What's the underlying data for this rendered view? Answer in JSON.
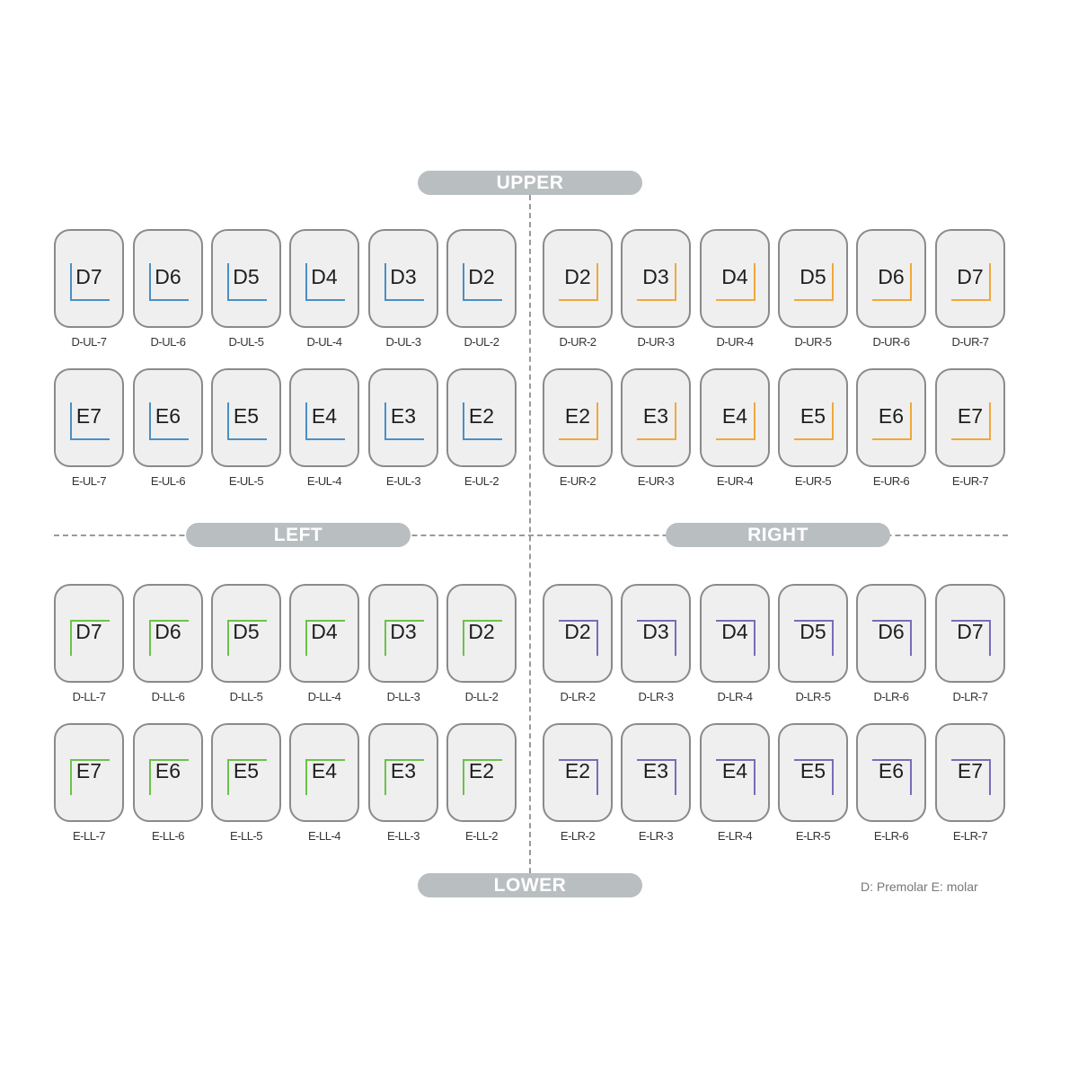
{
  "labels": {
    "upper": "UPPER",
    "lower": "LOWER",
    "left": "LEFT",
    "right": "RIGHT"
  },
  "legend": "D: Premolar E: molar",
  "colors": {
    "upper_left": "#4a8fc4",
    "upper_right": "#f0a83a",
    "lower_left": "#6cc24a",
    "lower_right": "#7b6bb8"
  },
  "quadrants": [
    {
      "id": "upper_left",
      "rows": [
        [
          {
            "code": "D7",
            "caption": "D-UL-7"
          },
          {
            "code": "D6",
            "caption": "D-UL-6"
          },
          {
            "code": "D5",
            "caption": "D-UL-5"
          },
          {
            "code": "D4",
            "caption": "D-UL-4"
          },
          {
            "code": "D3",
            "caption": "D-UL-3"
          },
          {
            "code": "D2",
            "caption": "D-UL-2"
          }
        ],
        [
          {
            "code": "E7",
            "caption": "E-UL-7"
          },
          {
            "code": "E6",
            "caption": "E-UL-6"
          },
          {
            "code": "E5",
            "caption": "E-UL-5"
          },
          {
            "code": "E4",
            "caption": "E-UL-4"
          },
          {
            "code": "E3",
            "caption": "E-UL-3"
          },
          {
            "code": "E2",
            "caption": "E-UL-2"
          }
        ]
      ]
    },
    {
      "id": "upper_right",
      "rows": [
        [
          {
            "code": "D2",
            "caption": "D-UR-2"
          },
          {
            "code": "D3",
            "caption": "D-UR-3"
          },
          {
            "code": "D4",
            "caption": "D-UR-4"
          },
          {
            "code": "D5",
            "caption": "D-UR-5"
          },
          {
            "code": "D6",
            "caption": "D-UR-6"
          },
          {
            "code": "D7",
            "caption": "D-UR-7"
          }
        ],
        [
          {
            "code": "E2",
            "caption": "E-UR-2"
          },
          {
            "code": "E3",
            "caption": "E-UR-3"
          },
          {
            "code": "E4",
            "caption": "E-UR-4"
          },
          {
            "code": "E5",
            "caption": "E-UR-5"
          },
          {
            "code": "E6",
            "caption": "E-UR-6"
          },
          {
            "code": "E7",
            "caption": "E-UR-7"
          }
        ]
      ]
    },
    {
      "id": "lower_left",
      "rows": [
        [
          {
            "code": "D7",
            "caption": "D-LL-7"
          },
          {
            "code": "D6",
            "caption": "D-LL-6"
          },
          {
            "code": "D5",
            "caption": "D-LL-5"
          },
          {
            "code": "D4",
            "caption": "D-LL-4"
          },
          {
            "code": "D3",
            "caption": "D-LL-3"
          },
          {
            "code": "D2",
            "caption": "D-LL-2"
          }
        ],
        [
          {
            "code": "E7",
            "caption": "E-LL-7"
          },
          {
            "code": "E6",
            "caption": "E-LL-6"
          },
          {
            "code": "E5",
            "caption": "E-LL-5"
          },
          {
            "code": "E4",
            "caption": "E-LL-4"
          },
          {
            "code": "E3",
            "caption": "E-LL-3"
          },
          {
            "code": "E2",
            "caption": "E-LL-2"
          }
        ]
      ]
    },
    {
      "id": "lower_right",
      "rows": [
        [
          {
            "code": "D2",
            "caption": "D-LR-2"
          },
          {
            "code": "D3",
            "caption": "D-LR-3"
          },
          {
            "code": "D4",
            "caption": "D-LR-4"
          },
          {
            "code": "D5",
            "caption": "D-LR-5"
          },
          {
            "code": "D6",
            "caption": "D-LR-6"
          },
          {
            "code": "D7",
            "caption": "D-LR-7"
          }
        ],
        [
          {
            "code": "E2",
            "caption": "E-LR-2"
          },
          {
            "code": "E3",
            "caption": "E-LR-3"
          },
          {
            "code": "E4",
            "caption": "E-LR-4"
          },
          {
            "code": "E5",
            "caption": "E-LR-5"
          },
          {
            "code": "E6",
            "caption": "E-LR-6"
          },
          {
            "code": "E7",
            "caption": "E-LR-7"
          }
        ]
      ]
    }
  ]
}
